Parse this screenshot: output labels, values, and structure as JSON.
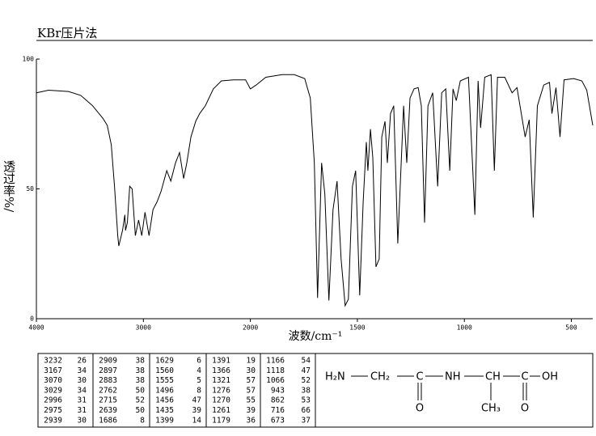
{
  "chart_data": {
    "type": "line",
    "title": "KBr压片法",
    "x_label": "波数/cm⁻¹",
    "y_label": "透过率%/",
    "xlim": [
      4000,
      400
    ],
    "x_scale_change": 2000,
    "x_scale_factor": 2,
    "ylim": [
      0,
      100
    ],
    "xticks": [
      4000,
      3000,
      2000,
      1500,
      1000,
      500
    ],
    "yticks": [
      0,
      50,
      100
    ],
    "color": "#000000",
    "x": [
      4000,
      3887,
      3700,
      3586,
      3474,
      3376,
      3338,
      3300,
      3270,
      3240,
      3230,
      3195,
      3173,
      3167,
      3150,
      3128,
      3105,
      3075,
      3045,
      3015,
      2985,
      2947,
      2910,
      2872,
      2835,
      2782,
      2744,
      2700,
      2662,
      2624,
      2594,
      2556,
      2511,
      2474,
      2421,
      2346,
      2271,
      2158,
      2045,
      2000,
      1973,
      1928,
      1852,
      1795,
      1746,
      1720,
      1701,
      1686,
      1667,
      1652,
      1633,
      1614,
      1595,
      1576,
      1557,
      1542,
      1523,
      1508,
      1489,
      1473,
      1458,
      1451,
      1439,
      1428,
      1413,
      1398,
      1386,
      1371,
      1360,
      1345,
      1330,
      1311,
      1284,
      1269,
      1254,
      1235,
      1216,
      1201,
      1186,
      1170,
      1148,
      1125,
      1106,
      1087,
      1068,
      1053,
      1038,
      1019,
      981,
      951,
      936,
      924,
      905,
      875,
      860,
      845,
      811,
      777,
      754,
      716,
      697,
      678,
      659,
      629,
      602,
      591,
      572,
      553,
      534,
      489,
      451,
      428,
      400
    ],
    "values": [
      87,
      88,
      87.5,
      86,
      82,
      77,
      74.5,
      67,
      51,
      32,
      28,
      34,
      40,
      34,
      37,
      51,
      50,
      32,
      38,
      32,
      41,
      32,
      42,
      45,
      49,
      57,
      53,
      60,
      64,
      54,
      60,
      70,
      76,
      79,
      82,
      88.5,
      91.6,
      92,
      92,
      88.5,
      90,
      93,
      94,
      94,
      92.5,
      85,
      60,
      8,
      60,
      48,
      7,
      42,
      53,
      23,
      5,
      7.5,
      51,
      57,
      9,
      45,
      68,
      57,
      73,
      62,
      20,
      23,
      70,
      76,
      60,
      79,
      82,
      29,
      82,
      60,
      85,
      88.5,
      89,
      82,
      37,
      82,
      87,
      51,
      87,
      88.5,
      57,
      88.5,
      84,
      91.6,
      93,
      40,
      91.6,
      73.5,
      93,
      94,
      57,
      93,
      93,
      87,
      89,
      70,
      76.6,
      39,
      82,
      90,
      91,
      79,
      89,
      70,
      92,
      92.5,
      91.6,
      88,
      74.5
    ]
  },
  "peak_table": [
    [
      [
        3232,
        26
      ],
      [
        3167,
        34
      ],
      [
        3070,
        30
      ],
      [
        3029,
        34
      ],
      [
        2996,
        31
      ],
      [
        2975,
        31
      ],
      [
        2939,
        30
      ]
    ],
    [
      [
        2909,
        38
      ],
      [
        2897,
        38
      ],
      [
        2883,
        38
      ],
      [
        2762,
        50
      ],
      [
        2715,
        52
      ],
      [
        2639,
        50
      ],
      [
        1686,
        8
      ]
    ],
    [
      [
        1629,
        6
      ],
      [
        1560,
        4
      ],
      [
        1555,
        5
      ],
      [
        1496,
        8
      ],
      [
        1456,
        47
      ],
      [
        1435,
        39
      ],
      [
        1399,
        14
      ]
    ],
    [
      [
        1391,
        19
      ],
      [
        1366,
        30
      ],
      [
        1321,
        57
      ],
      [
        1276,
        57
      ],
      [
        1270,
        55
      ],
      [
        1261,
        39
      ],
      [
        1179,
        36
      ]
    ],
    [
      [
        1166,
        54
      ],
      [
        1118,
        47
      ],
      [
        1066,
        52
      ],
      [
        943,
        38
      ],
      [
        862,
        53
      ],
      [
        716,
        66
      ],
      [
        673,
        37
      ]
    ]
  ],
  "structure": [
    "H₂N",
    "CH₂",
    "C",
    "NH",
    "CH",
    "C",
    "OH",
    "O",
    "CH₃",
    "O"
  ]
}
